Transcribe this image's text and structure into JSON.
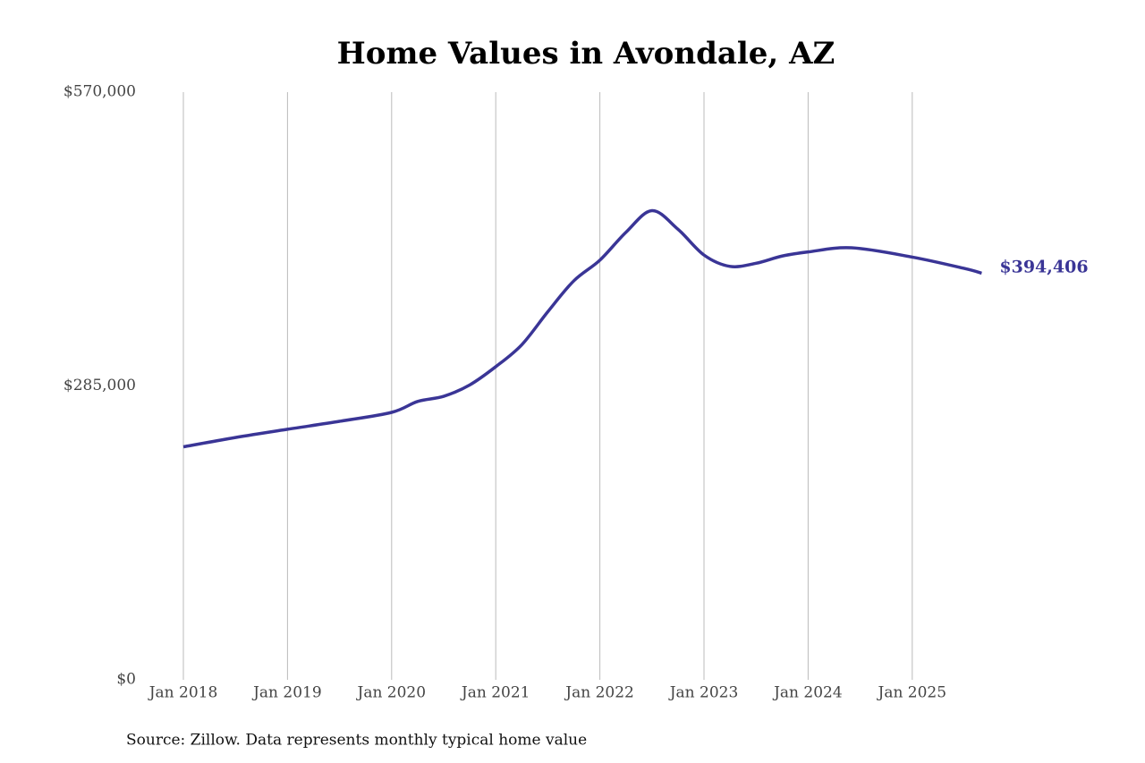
{
  "chart_data": {
    "type": "line",
    "title": "Home Values in Avondale, AZ",
    "source": "Source: Zillow. Data represents monthly typical home value",
    "x": [
      "2018-01",
      "2018-07",
      "2019-01",
      "2019-07",
      "2020-01",
      "2020-04",
      "2020-07",
      "2020-10",
      "2021-01",
      "2021-04",
      "2021-07",
      "2021-10",
      "2022-01",
      "2022-04",
      "2022-07",
      "2022-10",
      "2023-01",
      "2023-04",
      "2023-07",
      "2023-10",
      "2024-01",
      "2024-06",
      "2025-01",
      "2025-07",
      "2025-09"
    ],
    "series": [
      {
        "name": "Typical home value",
        "color": "#3a3596",
        "values": [
          226000,
          235000,
          243000,
          250700,
          259400,
          270000,
          275000,
          286000,
          303700,
          325000,
          357000,
          387000,
          407000,
          434000,
          455000,
          437000,
          412000,
          401000,
          404000,
          411000,
          415000,
          419000,
          410000,
          399000,
          394406
        ],
        "last_label": "$394,406"
      }
    ],
    "xticks": [
      {
        "value": "2018-01",
        "label": "Jan 2018"
      },
      {
        "value": "2019-01",
        "label": "Jan 2019"
      },
      {
        "value": "2020-01",
        "label": "Jan 2020"
      },
      {
        "value": "2021-01",
        "label": "Jan 2021"
      },
      {
        "value": "2022-01",
        "label": "Jan 2022"
      },
      {
        "value": "2023-01",
        "label": "Jan 2023"
      },
      {
        "value": "2024-01",
        "label": "Jan 2024"
      },
      {
        "value": "2025-01",
        "label": "Jan 2025"
      }
    ],
    "ylim": [
      0,
      570000
    ],
    "yticks": [
      {
        "value": 0,
        "label": "$0"
      },
      {
        "value": 285000,
        "label": "$285,000"
      },
      {
        "value": 570000,
        "label": "$570,000"
      }
    ],
    "grid": "x"
  }
}
